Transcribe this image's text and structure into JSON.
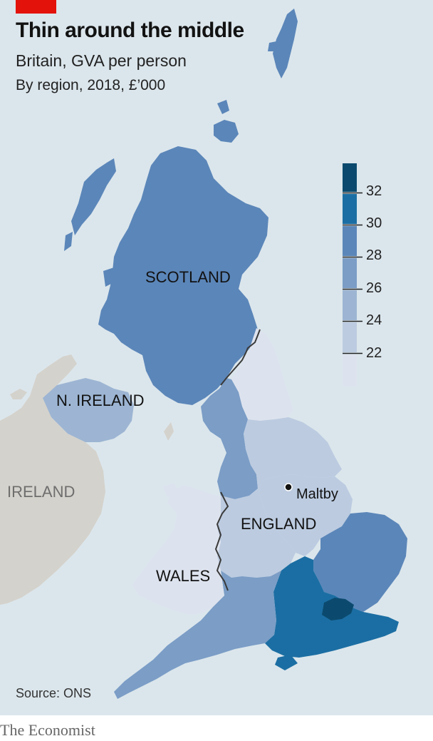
{
  "header": {
    "title": "Thin around the middle",
    "subtitle": "Britain, GVA per person",
    "subsubtitle": "By region, 2018, £’000"
  },
  "colors": {
    "accent_red": "#e3120b",
    "sea": "#dbe6ec",
    "ireland_land": "#d4d2cc",
    "bins": [
      "#dde3ee",
      "#bccbe0",
      "#9db5d3",
      "#7b9dc6",
      "#5b86b9",
      "#1b6ea3",
      "#0b4a6e"
    ],
    "border": "#3a3a3a"
  },
  "legend": {
    "tick_labels": [
      "32",
      "30",
      "28",
      "26",
      "24",
      "22"
    ],
    "thresholds": [
      32,
      30,
      28,
      26,
      24,
      22
    ]
  },
  "labels": {
    "scotland": "SCOTLAND",
    "n_ireland": "N. IRELAND",
    "ireland": "IRELAND",
    "england": "ENGLAND",
    "wales": "WALES",
    "maltby": "Maltby"
  },
  "source": "Source: ONS",
  "brand": "The Economist"
}
